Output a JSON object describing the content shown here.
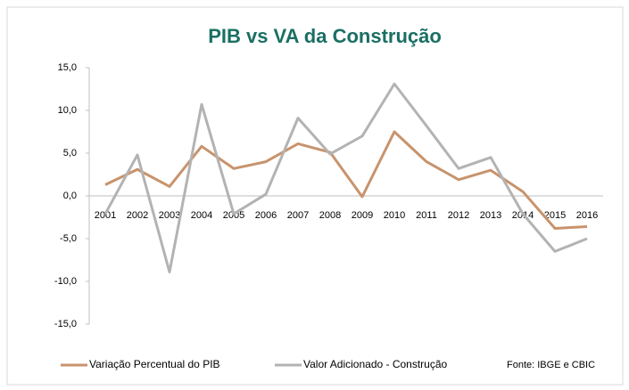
{
  "chart_data": {
    "type": "line",
    "title": "PIB vs VA da Construção",
    "categories": [
      "2001",
      "2002",
      "2003",
      "2004",
      "2005",
      "2006",
      "2007",
      "2008",
      "2009",
      "2010",
      "2011",
      "2012",
      "2013",
      "2014",
      "2015",
      "2016"
    ],
    "series": [
      {
        "name": "Variação Percentual do PIB",
        "color": "#c8936c",
        "values": [
          1.3,
          3.1,
          1.1,
          5.8,
          3.2,
          4.0,
          6.1,
          5.1,
          -0.1,
          7.5,
          4.0,
          1.9,
          3.0,
          0.5,
          -3.8,
          -3.6
        ]
      },
      {
        "name": "Valor Adicionado - Construção",
        "color": "#b3b3b3",
        "values": [
          -2.1,
          4.8,
          -8.9,
          10.7,
          -2.1,
          0.2,
          9.1,
          4.9,
          7.0,
          13.1,
          8.2,
          3.2,
          4.5,
          -2.1,
          -6.5,
          -5.0
        ]
      }
    ],
    "ylim": [
      -15,
      15
    ],
    "yticks": [
      {
        "value": -15,
        "label": "-15,0"
      },
      {
        "value": -10,
        "label": "-10,0"
      },
      {
        "value": -5,
        "label": "-5,0"
      },
      {
        "value": 0,
        "label": "0,0"
      },
      {
        "value": 5,
        "label": "5,0"
      },
      {
        "value": 10,
        "label": "10,0"
      },
      {
        "value": 15,
        "label": "15,0"
      }
    ],
    "annotation": "Fonte: IBGE e CBIC"
  }
}
